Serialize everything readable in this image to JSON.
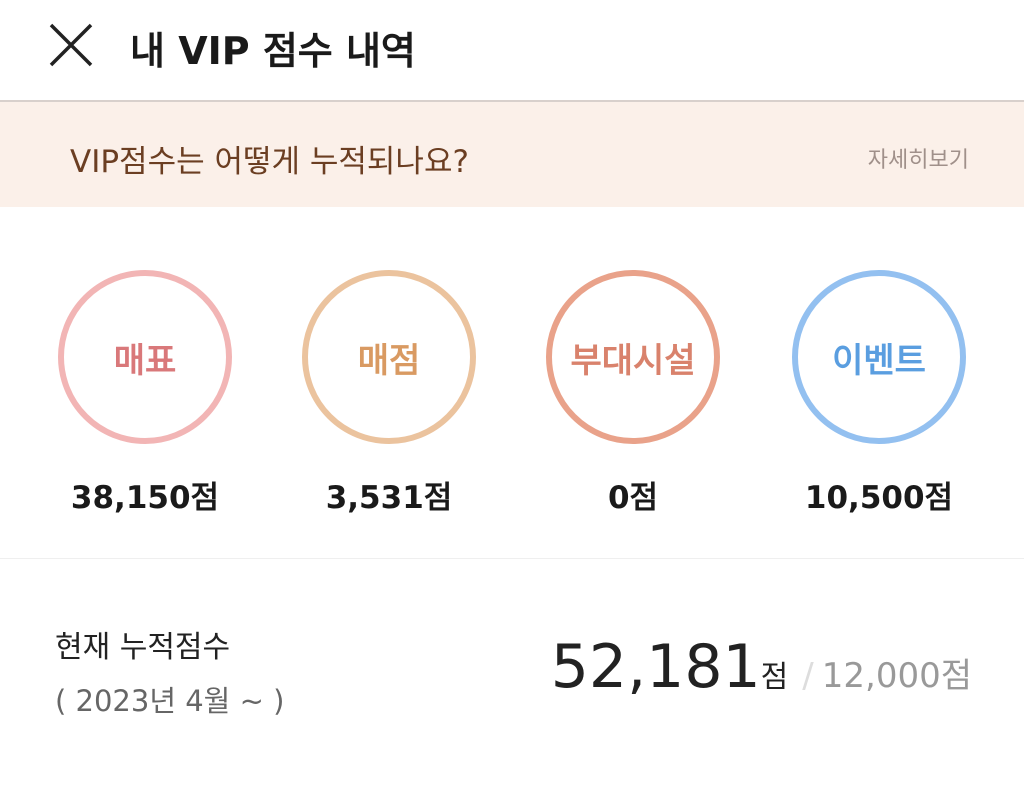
{
  "header": {
    "title": "내 VIP 점수 내역",
    "close_icon": "close-icon"
  },
  "banner": {
    "question": "VIP점수는 어떻게 누적되나요?",
    "more_label": "자세히보기"
  },
  "categories": [
    {
      "label": "매표",
      "score": "38,150점",
      "ring_color": "#f2b5b5",
      "text_color": "#d9787a"
    },
    {
      "label": "매점",
      "score": "3,531점",
      "ring_color": "#ebc39e",
      "text_color": "#d99a62"
    },
    {
      "label": "부대시설",
      "score": "0점",
      "ring_color": "#e9a28a",
      "text_color": "#d9826c"
    },
    {
      "label": "이벤트",
      "score": "10,500점",
      "ring_color": "#93c0f0",
      "text_color": "#5a9ee0"
    }
  ],
  "total": {
    "label": "현재 누적점수",
    "period": "( 2023년 4월 ~ )",
    "value": "52,181",
    "unit": "점",
    "separator": "/",
    "goal": "12,000점"
  }
}
